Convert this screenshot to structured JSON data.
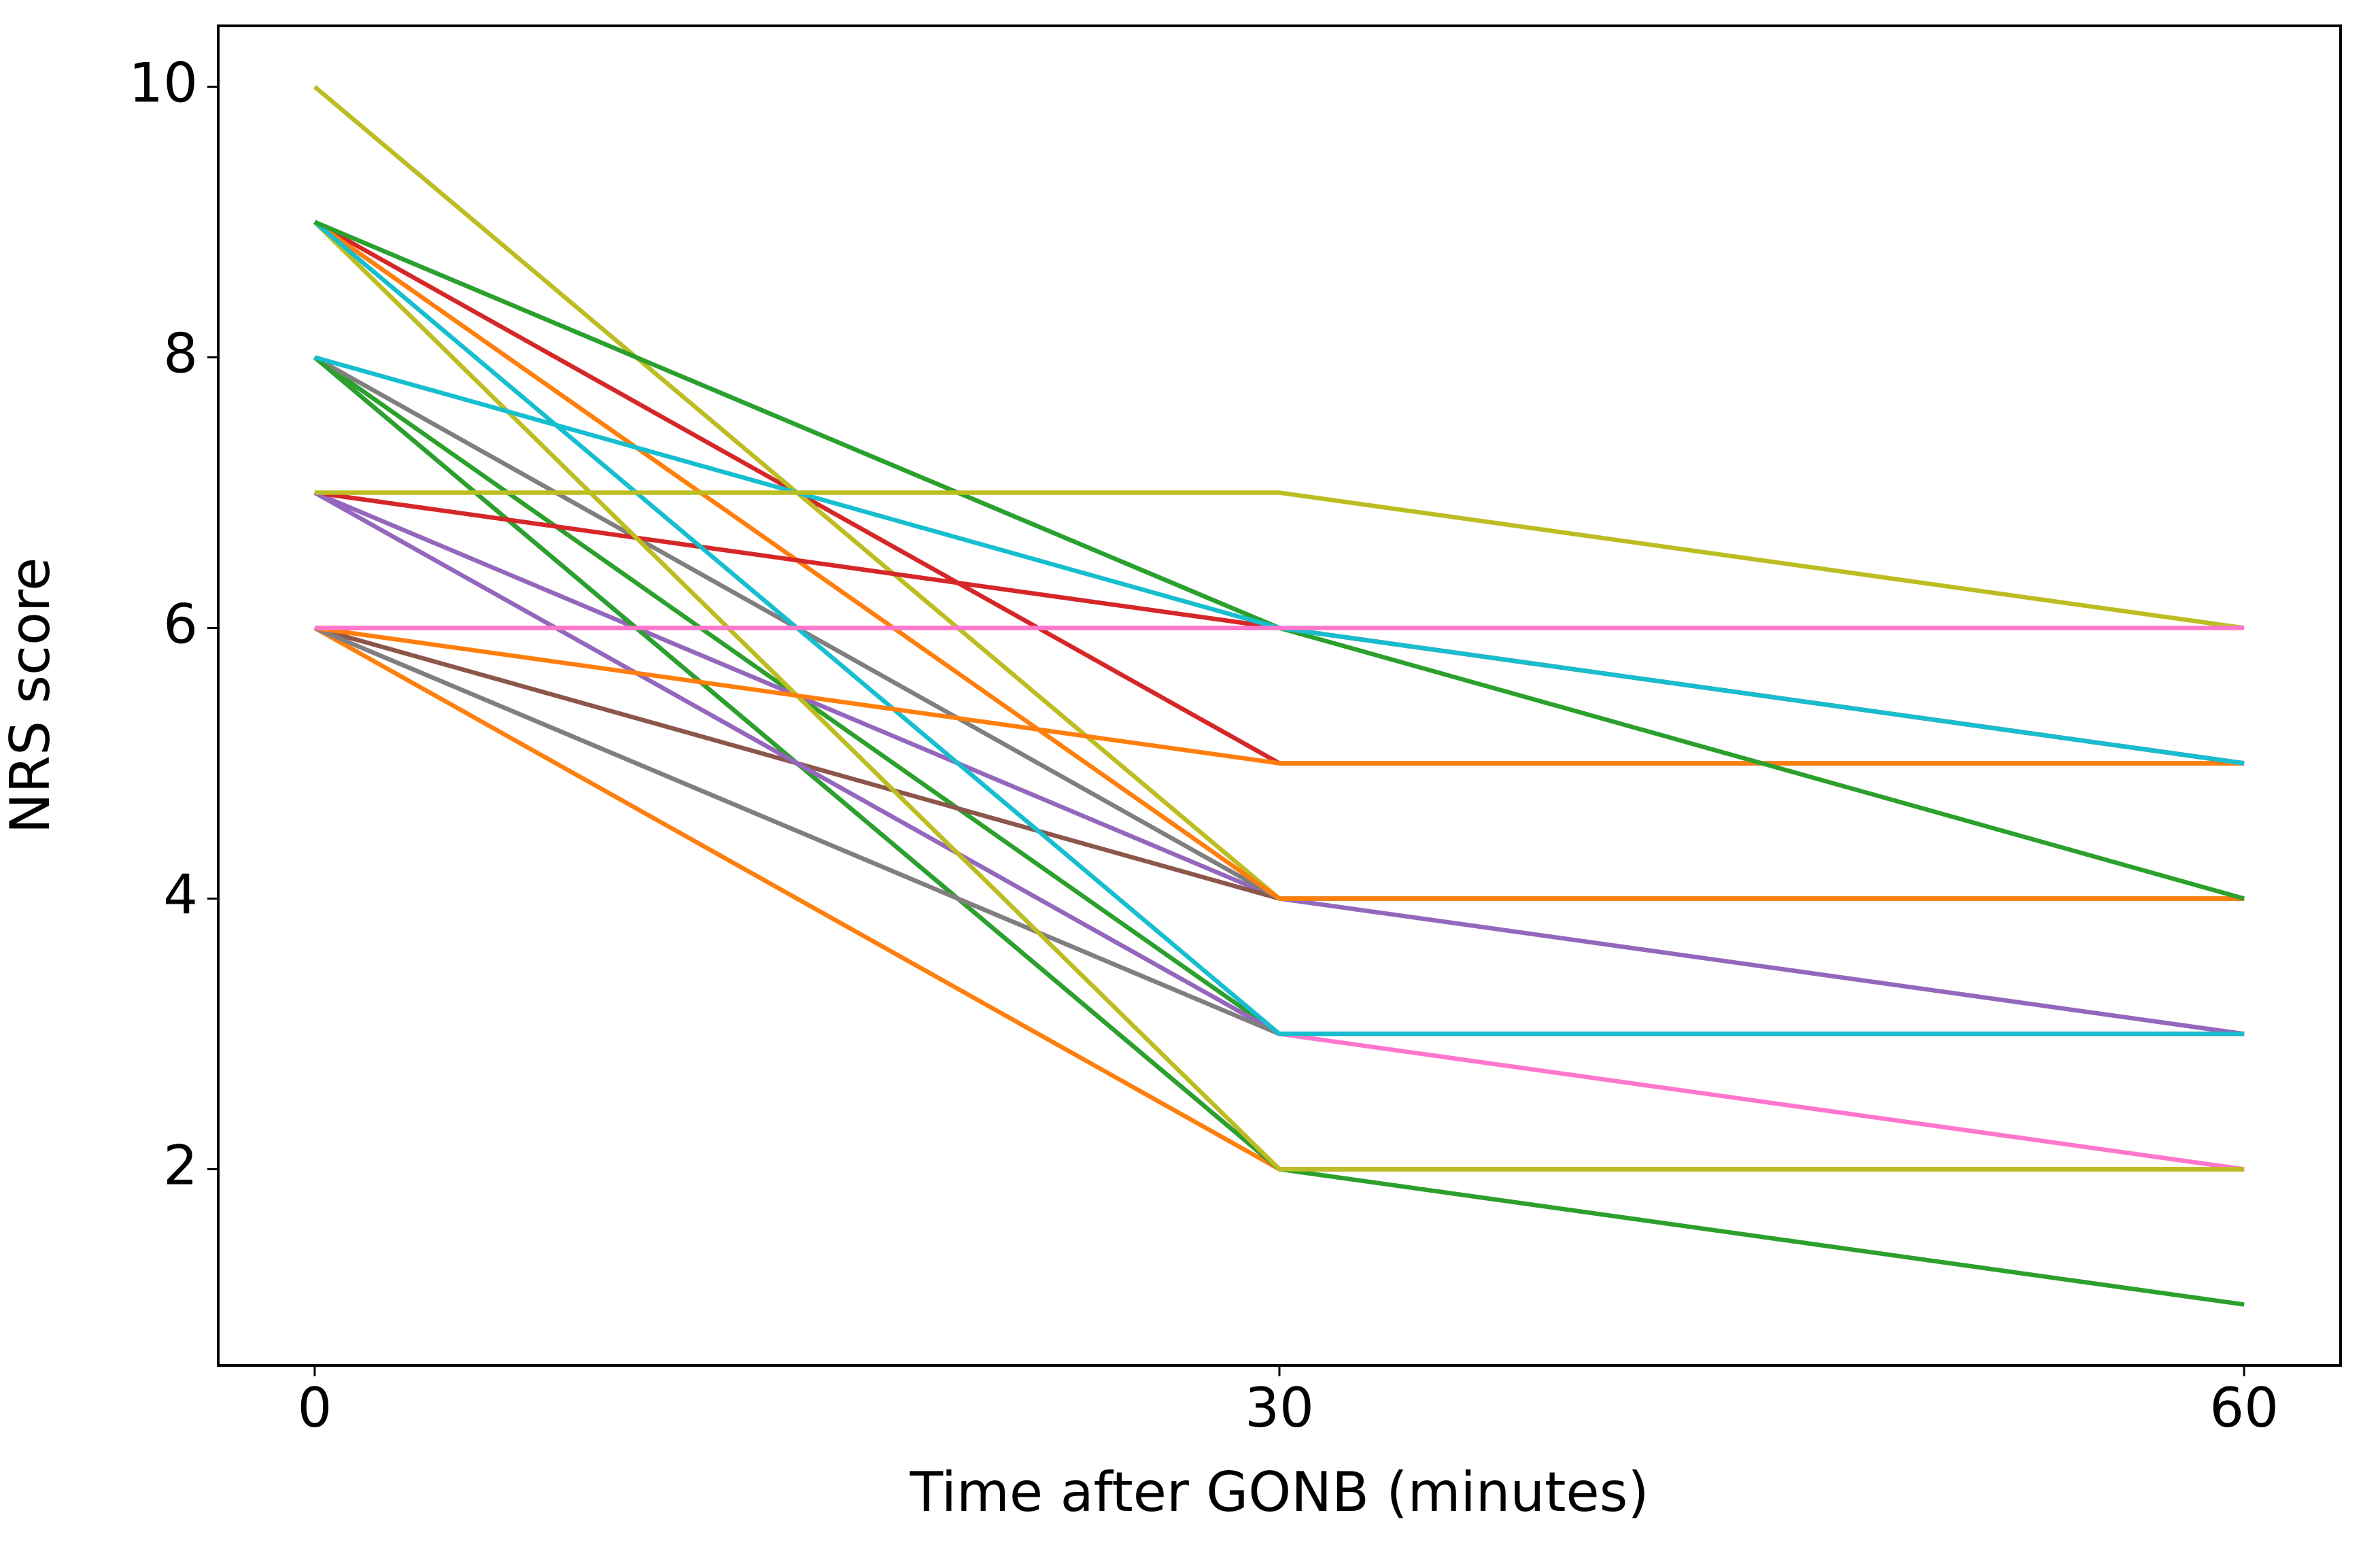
{
  "chart_data": {
    "type": "line",
    "x_label": "Time after GONB (minutes)",
    "y_label": "NRS score",
    "x": [
      0,
      30,
      60
    ],
    "xlim": [
      -3,
      63
    ],
    "xticks": [
      0,
      30,
      60
    ],
    "ylim": [
      0.55,
      10.45
    ],
    "yticks": [
      2,
      4,
      6,
      8,
      10
    ],
    "series": [
      {
        "color": "#1f77b4",
        "values": [
          8,
          2,
          2
        ]
      },
      {
        "color": "#ff7f0e",
        "values": [
          6,
          2,
          2
        ]
      },
      {
        "color": "#2ca02c",
        "values": [
          8,
          3,
          3
        ]
      },
      {
        "color": "#d62728",
        "values": [
          9,
          5,
          5
        ]
      },
      {
        "color": "#9467bd",
        "values": [
          7,
          4,
          3
        ]
      },
      {
        "color": "#8c564b",
        "values": [
          6,
          4,
          4
        ]
      },
      {
        "color": "#ff77cc",
        "values": [
          6,
          6,
          5
        ]
      },
      {
        "color": "#7f7f7f",
        "values": [
          8,
          4,
          4
        ]
      },
      {
        "color": "#bcbd22",
        "values": [
          10,
          4,
          4
        ]
      },
      {
        "color": "#17becf",
        "values": [
          9,
          6,
          5
        ]
      },
      {
        "color": "#ff7f0e",
        "values": [
          9,
          4,
          4
        ]
      },
      {
        "color": "#2ca02c",
        "values": [
          8,
          2,
          1
        ]
      },
      {
        "color": "#d62728",
        "values": [
          7,
          6,
          5
        ]
      },
      {
        "color": "#9467bd",
        "values": [
          7,
          3,
          3
        ]
      },
      {
        "color": "#ff77cc",
        "values": [
          6,
          3,
          2
        ]
      },
      {
        "color": "#7f7f7f",
        "values": [
          6,
          3,
          3
        ]
      },
      {
        "color": "#bcbd22",
        "values": [
          9,
          2,
          2
        ]
      },
      {
        "color": "#17becf",
        "values": [
          9,
          3,
          3
        ]
      },
      {
        "color": "#ff7f0e",
        "values": [
          6,
          5,
          5
        ]
      },
      {
        "color": "#2ca02c",
        "values": [
          9,
          6,
          4
        ]
      },
      {
        "color": "#17becf",
        "values": [
          8,
          6,
          5
        ]
      },
      {
        "color": "#bcbd22",
        "values": [
          7,
          7,
          6
        ]
      },
      {
        "color": "#ff77cc",
        "values": [
          6,
          6,
          6
        ]
      }
    ]
  }
}
